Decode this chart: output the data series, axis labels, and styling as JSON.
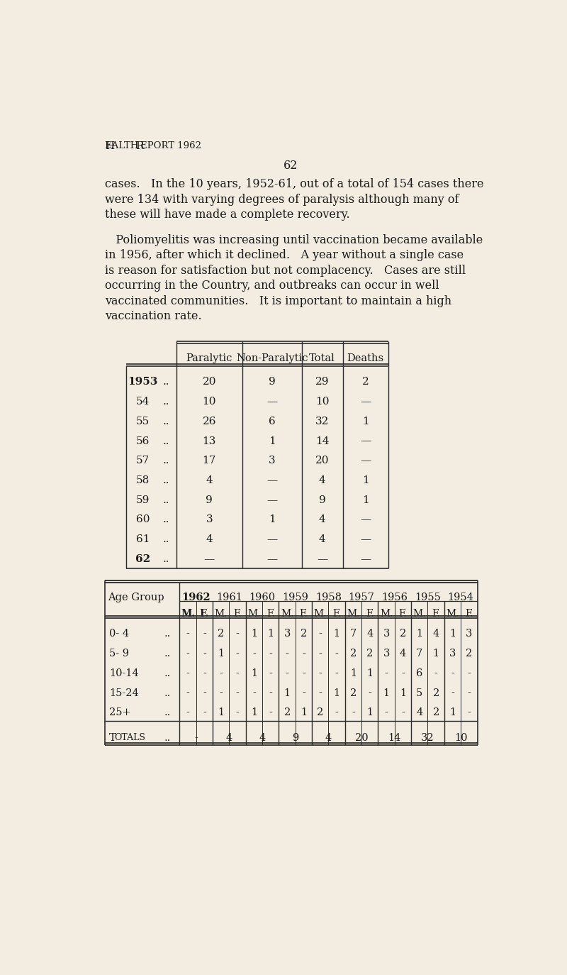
{
  "bg_color": "#f2ede0",
  "text_color": "#1a1a1a",
  "header": "Health Report 1962",
  "page_number": "62",
  "para1_lines": [
    "cases.   In the 10 years, 1952-61, out of a total of 154 cases there",
    "were 134 with varying degrees of paralysis although many of",
    "these will have made a complete recovery."
  ],
  "para2_lines": [
    "   Poliomyelitis was increasing until vaccination became available",
    "in 1956, after which it declined.   A year without a single case",
    "is reason for satisfaction but not complacency.   Cases are still",
    "occurring in the Country, and outbreaks can occur in well",
    "vaccinated communities.   It is important to maintain a high",
    "vaccination rate."
  ],
  "table1_headers": [
    "Paralytic",
    "Non-Paralytic",
    "Total",
    "Deaths"
  ],
  "table1_rows": [
    [
      "1953",
      "..",
      "20",
      "9",
      "29",
      "2"
    ],
    [
      "54",
      "..",
      "10",
      "—",
      "10",
      "—"
    ],
    [
      "55",
      "..",
      "26",
      "6",
      "32",
      "1"
    ],
    [
      "56",
      "..",
      "13",
      "1",
      "14",
      "—"
    ],
    [
      "57",
      "..",
      "17",
      "3",
      "20",
      "—"
    ],
    [
      "58",
      "..",
      "4",
      "—",
      "4",
      "1"
    ],
    [
      "59",
      "..",
      "9",
      "—",
      "9",
      "1"
    ],
    [
      "60",
      "..",
      "3",
      "1",
      "4",
      "—"
    ],
    [
      "61",
      "..",
      "4",
      "—",
      "4",
      "—"
    ],
    [
      "62",
      "..",
      "—",
      "—",
      "—",
      "—"
    ]
  ],
  "table2_years": [
    "1962",
    "1961",
    "1960",
    "1959",
    "1958",
    "1957",
    "1956",
    "1955",
    "1954"
  ],
  "table2_age_groups": [
    "0- 4",
    "5- 9",
    "10-14",
    "15-24",
    "25+"
  ],
  "table2_data": {
    "0- 4": [
      "-",
      "-",
      "2",
      "-",
      "1",
      "1",
      "3",
      "2",
      "-",
      "1",
      "7",
      "4",
      "3",
      "2",
      "1",
      "4",
      "1",
      "3"
    ],
    "5- 9": [
      "-",
      "-",
      "1",
      "-",
      "-",
      "-",
      "-",
      "-",
      "-",
      "-",
      "2",
      "2",
      "3",
      "4",
      "7",
      "1",
      "3",
      "2"
    ],
    "10-14": [
      "-",
      "-",
      "-",
      "-",
      "1",
      "-",
      "-",
      "-",
      "-",
      "-",
      "1",
      "1",
      "-",
      "-",
      "6",
      "-",
      "-",
      "-"
    ],
    "15-24": [
      "-",
      "-",
      "-",
      "-",
      "-",
      "-",
      "1",
      "-",
      "-",
      "1",
      "2",
      "-",
      "1",
      "1",
      "5",
      "2",
      "-",
      "-"
    ],
    "25+": [
      "-",
      "-",
      "1",
      "-",
      "1",
      "-",
      "2",
      "1",
      "2",
      "-",
      "-",
      "1",
      "-",
      "-",
      "4",
      "2",
      "1",
      "-"
    ]
  },
  "table2_totals": [
    "-",
    "4",
    "4",
    "9",
    "4",
    "20",
    "14",
    "32",
    "10"
  ]
}
